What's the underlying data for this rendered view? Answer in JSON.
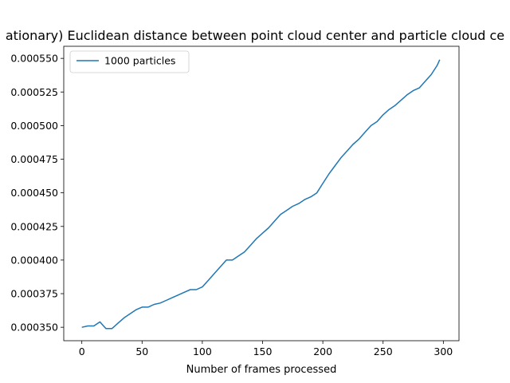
{
  "chart_data": {
    "type": "line",
    "title": "ationary) Euclidean distance between point cloud center and particle cloud ce",
    "xlabel": "Number of frames processed",
    "ylabel": "",
    "xlim": [
      -15,
      313
    ],
    "ylim": [
      0.00034,
      0.000559
    ],
    "xticks": [
      0,
      50,
      100,
      150,
      200,
      250,
      300
    ],
    "xtick_labels": [
      "0",
      "50",
      "100",
      "150",
      "200",
      "250",
      "300"
    ],
    "yticks": [
      0.00035,
      0.000375,
      0.0004,
      0.000425,
      0.00045,
      0.000475,
      0.0005,
      0.000525,
      0.00055
    ],
    "ytick_labels": [
      "0.000350",
      "0.000375",
      "0.000400",
      "0.000425",
      "0.000450",
      "0.000475",
      "0.000500",
      "0.000525",
      "0.000550"
    ],
    "grid": false,
    "legend_position": "top-left",
    "series": [
      {
        "name": "1000 particles",
        "color": "#1f77b4",
        "x": [
          0,
          5,
          10,
          15,
          20,
          25,
          30,
          35,
          40,
          45,
          50,
          55,
          60,
          65,
          70,
          75,
          80,
          85,
          90,
          95,
          100,
          105,
          110,
          115,
          120,
          125,
          130,
          135,
          140,
          145,
          150,
          155,
          160,
          165,
          170,
          175,
          180,
          185,
          190,
          195,
          200,
          205,
          210,
          215,
          220,
          225,
          230,
          235,
          240,
          245,
          250,
          255,
          260,
          265,
          270,
          275,
          280,
          285,
          290,
          295,
          297
        ],
        "y": [
          0.00035,
          0.000351,
          0.000351,
          0.000354,
          0.000349,
          0.000349,
          0.000353,
          0.000357,
          0.00036,
          0.000363,
          0.000365,
          0.000365,
          0.000367,
          0.000368,
          0.00037,
          0.000372,
          0.000374,
          0.000376,
          0.000378,
          0.000378,
          0.00038,
          0.000385,
          0.00039,
          0.000395,
          0.0004,
          0.0004,
          0.000403,
          0.000406,
          0.000411,
          0.000416,
          0.00042,
          0.000424,
          0.000429,
          0.000434,
          0.000437,
          0.00044,
          0.000442,
          0.000445,
          0.000447,
          0.00045,
          0.000457,
          0.000464,
          0.00047,
          0.000476,
          0.000481,
          0.000486,
          0.00049,
          0.000495,
          0.0005,
          0.000503,
          0.000508,
          0.000512,
          0.000515,
          0.000519,
          0.000523,
          0.000526,
          0.000528,
          0.000533,
          0.000538,
          0.000545,
          0.000549
        ]
      }
    ]
  }
}
